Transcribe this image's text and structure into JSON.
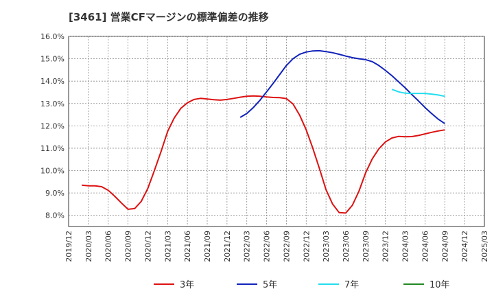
{
  "chart_data": {
    "type": "line",
    "title": "[3461]  営業CFマージンの標準偏差の推移",
    "xlabel": "",
    "ylabel": "",
    "ylim": [
      7.5,
      16.0
    ],
    "y_ticks": [
      8.0,
      9.0,
      10.0,
      11.0,
      12.0,
      13.0,
      14.0,
      15.0,
      16.0
    ],
    "y_tick_labels": [
      "8.0%",
      "9.0%",
      "10.0%",
      "11.0%",
      "12.0%",
      "13.0%",
      "14.0%",
      "15.0%",
      "16.0%"
    ],
    "x_range": [
      "2019-12",
      "2025-03"
    ],
    "x_tick_labels": [
      "2019/12",
      "2020/03",
      "2020/06",
      "2020/09",
      "2020/12",
      "2021/03",
      "2021/06",
      "2021/09",
      "2021/12",
      "2022/03",
      "2022/06",
      "2022/09",
      "2022/12",
      "2023/03",
      "2023/06",
      "2023/09",
      "2023/12",
      "2024/03",
      "2024/06",
      "2024/09",
      "2024/12",
      "2025/03"
    ],
    "grid": true,
    "legend_position": "bottom",
    "series": [
      {
        "name": "3年",
        "color": "#dd1111",
        "points": [
          [
            "2020-02",
            9.35
          ],
          [
            "2020-03",
            9.32
          ],
          [
            "2020-04",
            9.32
          ],
          [
            "2020-05",
            9.28
          ],
          [
            "2020-06",
            9.12
          ],
          [
            "2020-07",
            8.85
          ],
          [
            "2020-08",
            8.55
          ],
          [
            "2020-09",
            8.27
          ],
          [
            "2020-10",
            8.3
          ],
          [
            "2020-11",
            8.62
          ],
          [
            "2020-12",
            9.2
          ],
          [
            "2021-01",
            10.0
          ],
          [
            "2021-02",
            10.85
          ],
          [
            "2021-03",
            11.75
          ],
          [
            "2021-04",
            12.35
          ],
          [
            "2021-05",
            12.78
          ],
          [
            "2021-06",
            13.03
          ],
          [
            "2021-07",
            13.18
          ],
          [
            "2021-08",
            13.23
          ],
          [
            "2021-09",
            13.2
          ],
          [
            "2021-10",
            13.17
          ],
          [
            "2021-11",
            13.15
          ],
          [
            "2021-12",
            13.18
          ],
          [
            "2022-01",
            13.23
          ],
          [
            "2022-02",
            13.28
          ],
          [
            "2022-03",
            13.32
          ],
          [
            "2022-04",
            13.34
          ],
          [
            "2022-05",
            13.32
          ],
          [
            "2022-06",
            13.29
          ],
          [
            "2022-07",
            13.27
          ],
          [
            "2022-08",
            13.26
          ],
          [
            "2022-09",
            13.22
          ],
          [
            "2022-10",
            12.98
          ],
          [
            "2022-11",
            12.48
          ],
          [
            "2022-12",
            11.82
          ],
          [
            "2023-01",
            11.0
          ],
          [
            "2023-02",
            10.1
          ],
          [
            "2023-03",
            9.15
          ],
          [
            "2023-04",
            8.5
          ],
          [
            "2023-05",
            8.12
          ],
          [
            "2023-06",
            8.1
          ],
          [
            "2023-07",
            8.45
          ],
          [
            "2023-08",
            9.08
          ],
          [
            "2023-09",
            9.9
          ],
          [
            "2023-10",
            10.52
          ],
          [
            "2023-11",
            10.97
          ],
          [
            "2023-12",
            11.28
          ],
          [
            "2024-01",
            11.46
          ],
          [
            "2024-02",
            11.53
          ],
          [
            "2024-03",
            11.51
          ],
          [
            "2024-04",
            11.52
          ],
          [
            "2024-05",
            11.57
          ],
          [
            "2024-06",
            11.64
          ],
          [
            "2024-07",
            11.71
          ],
          [
            "2024-08",
            11.77
          ],
          [
            "2024-09",
            11.82
          ]
        ]
      },
      {
        "name": "5年",
        "color": "#1122bb",
        "points": [
          [
            "2022-02",
            12.38
          ],
          [
            "2022-03",
            12.55
          ],
          [
            "2022-04",
            12.82
          ],
          [
            "2022-05",
            13.15
          ],
          [
            "2022-06",
            13.52
          ],
          [
            "2022-07",
            13.9
          ],
          [
            "2022-08",
            14.3
          ],
          [
            "2022-09",
            14.7
          ],
          [
            "2022-10",
            15.0
          ],
          [
            "2022-11",
            15.2
          ],
          [
            "2022-12",
            15.3
          ],
          [
            "2023-01",
            15.35
          ],
          [
            "2023-02",
            15.36
          ],
          [
            "2023-03",
            15.32
          ],
          [
            "2023-04",
            15.27
          ],
          [
            "2023-05",
            15.2
          ],
          [
            "2023-06",
            15.12
          ],
          [
            "2023-07",
            15.05
          ],
          [
            "2023-08",
            15.0
          ],
          [
            "2023-09",
            14.96
          ],
          [
            "2023-10",
            14.87
          ],
          [
            "2023-11",
            14.7
          ],
          [
            "2023-12",
            14.48
          ],
          [
            "2024-01",
            14.24
          ],
          [
            "2024-02",
            13.97
          ],
          [
            "2024-03",
            13.7
          ],
          [
            "2024-04",
            13.4
          ],
          [
            "2024-05",
            13.12
          ],
          [
            "2024-06",
            12.82
          ],
          [
            "2024-07",
            12.55
          ],
          [
            "2024-08",
            12.3
          ],
          [
            "2024-09",
            12.1
          ]
        ]
      },
      {
        "name": "7年",
        "color": "#22ddee",
        "points": [
          [
            "2024-01",
            13.63
          ],
          [
            "2024-02",
            13.52
          ],
          [
            "2024-03",
            13.46
          ],
          [
            "2024-04",
            13.45
          ],
          [
            "2024-05",
            13.45
          ],
          [
            "2024-06",
            13.45
          ],
          [
            "2024-07",
            13.42
          ],
          [
            "2024-08",
            13.38
          ],
          [
            "2024-09",
            13.32
          ]
        ]
      },
      {
        "name": "10年",
        "color": "#228822",
        "points": []
      }
    ]
  }
}
